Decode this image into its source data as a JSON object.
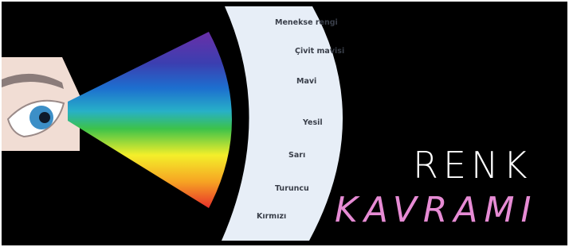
{
  "spectrum_labels": [
    "Menekse rengi",
    "Çivit mavisi",
    "Mavi",
    "Yesil",
    "Sarı",
    "Turuncu",
    "Kırmızı"
  ],
  "title": "RENK",
  "subtitle": "KAVRAMI"
}
